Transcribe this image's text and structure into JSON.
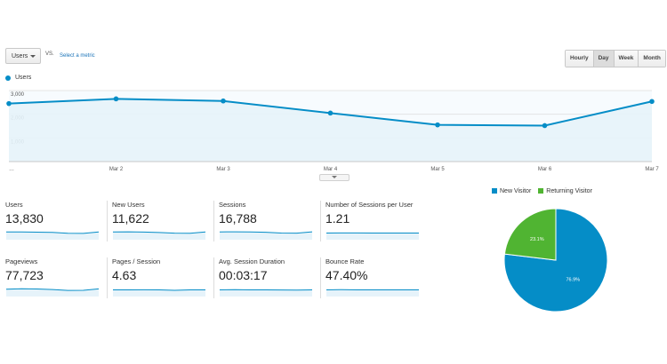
{
  "controls": {
    "metric_select": "Users",
    "vs_label": "VS.",
    "select_metric_link": "Select a metric",
    "ranges": [
      {
        "label": "Hourly",
        "active": false
      },
      {
        "label": "Day",
        "active": true
      },
      {
        "label": "Week",
        "active": false
      },
      {
        "label": "Month",
        "active": false
      }
    ]
  },
  "colors": {
    "primary": "#058dc7",
    "area_fill": "#e6f3fa",
    "returning": "#50b432"
  },
  "chart_data": [
    {
      "type": "area",
      "series": [
        {
          "name": "Users",
          "values": [
            2450,
            2650,
            2560,
            2050,
            1550,
            1520,
            2540
          ]
        }
      ],
      "x_tick_labels": [
        "…",
        "Mar 2",
        "Mar 3",
        "Mar 4",
        "Mar 5",
        "Mar 6",
        "Mar 7"
      ],
      "y_ticks": [
        {
          "value": 1000,
          "label": "1,000"
        },
        {
          "value": 2000,
          "label": "2,000"
        },
        {
          "value": 3000,
          "label": "3,000"
        }
      ],
      "ylim": [
        0,
        3000
      ],
      "grid": true
    },
    {
      "type": "pie",
      "slices": [
        {
          "name": "New Visitor",
          "value": 76.9,
          "label": "76.9%",
          "color": "#058dc7"
        },
        {
          "name": "Returning Visitor",
          "value": 23.1,
          "label": "23.1%",
          "color": "#50b432"
        }
      ],
      "legend_position": "top"
    }
  ],
  "metrics": [
    {
      "label": "Users",
      "value": "13,830",
      "spark": [
        6,
        6,
        5.8,
        5.6,
        4.8,
        4.7,
        6
      ]
    },
    {
      "label": "New Users",
      "value": "11,622",
      "spark": [
        6,
        6.1,
        5.9,
        5.5,
        4.9,
        4.8,
        6
      ]
    },
    {
      "label": "Sessions",
      "value": "16,788",
      "spark": [
        6,
        6.1,
        6,
        5.7,
        5,
        4.9,
        6.1
      ]
    },
    {
      "label": "Number of Sessions per User",
      "value": "1.21",
      "spark": [
        5,
        5.1,
        5.1,
        5,
        5,
        5,
        5
      ]
    },
    {
      "label": "Pageviews",
      "value": "77,723",
      "spark": [
        5.6,
        6,
        5.8,
        5.3,
        4.5,
        4.6,
        5.9
      ]
    },
    {
      "label": "Pages / Session",
      "value": "4.63",
      "spark": [
        5,
        5,
        5.1,
        5,
        4.6,
        5,
        5
      ]
    },
    {
      "label": "Avg. Session Duration",
      "value": "00:03:17",
      "spark": [
        5,
        5.2,
        5,
        5,
        4.9,
        4.8,
        5
      ]
    },
    {
      "label": "Bounce Rate",
      "value": "47.40%",
      "spark": [
        5,
        5.2,
        5,
        5,
        5,
        5,
        5
      ]
    }
  ]
}
